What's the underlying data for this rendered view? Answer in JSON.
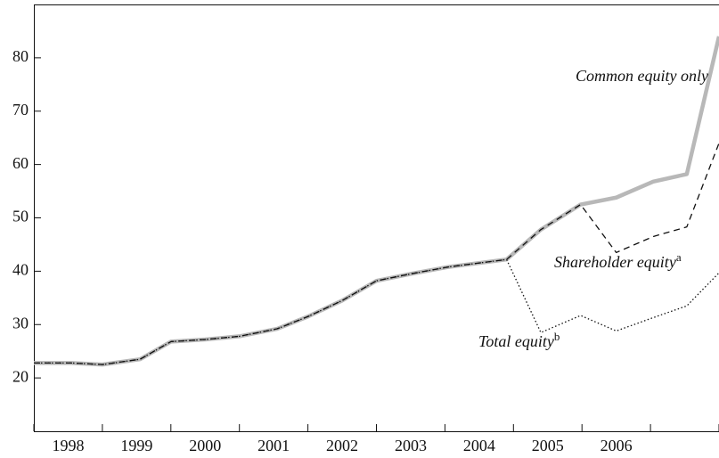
{
  "chart_data": {
    "type": "line",
    "x_labels": [
      1998,
      1999,
      2000,
      2001,
      2002,
      2003,
      2004,
      2005,
      2006
    ],
    "xlim": [
      1998,
      2008
    ],
    "xticks": [
      1998,
      1999,
      2000,
      2001,
      2002,
      2003,
      2004,
      2005,
      2006,
      2007,
      2008
    ],
    "ylim": [
      10,
      90
    ],
    "yticks": [
      20,
      30,
      40,
      50,
      60,
      70,
      80
    ],
    "x": [
      1998.0,
      1998.55,
      1999.0,
      1999.55,
      2000.0,
      2000.5,
      2001.0,
      2001.55,
      2002.0,
      2002.5,
      2003.0,
      2003.5,
      2004.05,
      2004.9,
      2005.4,
      2005.98,
      2006.5,
      2007.04,
      2007.53,
      2008.0
    ],
    "series": [
      {
        "name": "Common equity only",
        "color": "#b8b8b8",
        "style": "solid",
        "values": [
          22.8,
          22.8,
          22.5,
          23.5,
          26.8,
          27.2,
          27.8,
          29.2,
          31.5,
          34.5,
          38.2,
          39.5,
          40.8,
          42.2,
          47.8,
          52.5,
          53.8,
          56.8,
          58.2,
          84
        ]
      },
      {
        "name": "Shareholder equity",
        "sup": "a",
        "color": "#111111",
        "style": "dashed",
        "values": [
          22.8,
          22.8,
          22.5,
          23.5,
          26.8,
          27.2,
          27.8,
          29.2,
          31.5,
          34.5,
          38.2,
          39.5,
          40.8,
          42.2,
          47.8,
          52.5,
          43.5,
          46.5,
          48.3,
          64
        ]
      },
      {
        "name": "Total equity",
        "sup": "b",
        "color": "#111111",
        "style": "dotted",
        "values": [
          22.8,
          22.8,
          22.5,
          23.5,
          26.8,
          27.2,
          27.8,
          29.2,
          31.5,
          34.5,
          38.2,
          39.5,
          40.8,
          42.2,
          28.5,
          31.7,
          28.8,
          31.3,
          33.5,
          39.7
        ]
      }
    ]
  }
}
